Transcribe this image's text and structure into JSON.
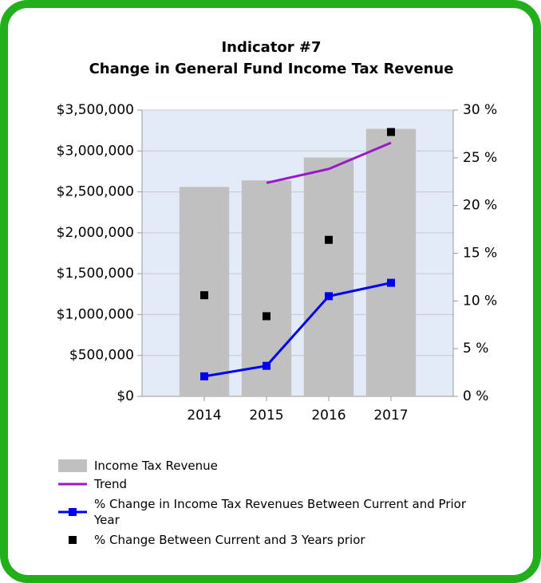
{
  "chart_data": {
    "type": "bar",
    "title": "Indicator #7",
    "subtitle": "Change in General Fund Income Tax Revenue",
    "categories": [
      "2014",
      "2015",
      "2016",
      "2017"
    ],
    "series": [
      {
        "name": "Income Tax Revenue",
        "type": "bar",
        "color": "#c0c0c0",
        "values": [
          2560000,
          2640000,
          2920000,
          3270000
        ]
      },
      {
        "name": "Trend",
        "type": "line",
        "color": "#9a18c9",
        "values": [
          null,
          2610000,
          2780000,
          3100000
        ]
      },
      {
        "name": "% Change in Income Tax Revenues Between Current and Prior Year",
        "type": "line",
        "marker": "square",
        "color": "#0000ee",
        "axis": "y2",
        "values": [
          2.1,
          3.2,
          10.5,
          11.9
        ]
      },
      {
        "name": "% Change Between Current and 3 Years prior",
        "type": "scatter",
        "marker": "square",
        "color": "#000000",
        "axis": "y2",
        "values": [
          10.6,
          8.4,
          16.4,
          27.7
        ]
      }
    ],
    "ylim": [
      0,
      3500000
    ],
    "yticks": [
      {
        "value": 0,
        "label": "$0"
      },
      {
        "value": 500000,
        "label": "$500,000"
      },
      {
        "value": 1000000,
        "label": "$1,000,000"
      },
      {
        "value": 1500000,
        "label": "$1,500,000"
      },
      {
        "value": 2000000,
        "label": "$2,000,000"
      },
      {
        "value": 2500000,
        "label": "$2,500,000"
      },
      {
        "value": 3000000,
        "label": "$3,000,000"
      },
      {
        "value": 3500000,
        "label": "$3,500,000"
      }
    ],
    "y2lim": [
      0,
      30
    ],
    "y2ticks": [
      {
        "value": 0,
        "label": "0 %"
      },
      {
        "value": 5,
        "label": "5 %"
      },
      {
        "value": 10,
        "label": "10 %"
      },
      {
        "value": 15,
        "label": "15 %"
      },
      {
        "value": 20,
        "label": "20 %"
      },
      {
        "value": 25,
        "label": "25 %"
      },
      {
        "value": 30,
        "label": "30 %"
      }
    ],
    "grid": true,
    "legend": "bottom"
  }
}
